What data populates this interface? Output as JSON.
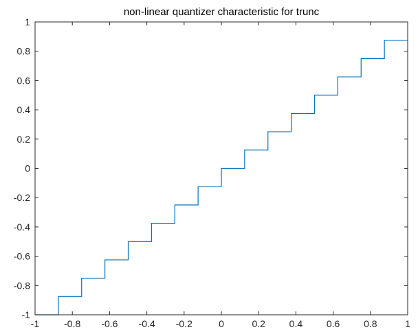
{
  "chart_data": {
    "type": "line",
    "title": "non-linear quantizer characteristic for trunc",
    "xlabel": "",
    "ylabel": "",
    "xlim": [
      -1,
      1
    ],
    "ylim": [
      -1,
      1
    ],
    "grid": false,
    "x_ticks": [
      "-1",
      "-0.8",
      "-0.6",
      "-0.4",
      "-0.2",
      "0",
      "0.2",
      "0.4",
      "0.6",
      "0.8",
      "1"
    ],
    "y_ticks": [
      "1",
      "0.8",
      "0.6",
      "0.4",
      "0.2",
      "0",
      "-0.2",
      "-0.4",
      "-0.6",
      "-0.8",
      "-1"
    ],
    "series": [
      {
        "color": "#0072bd",
        "step": "post",
        "x": [
          -1,
          -0.875,
          -0.75,
          -0.625,
          -0.5,
          -0.375,
          -0.25,
          -0.125,
          0,
          0.125,
          0.25,
          0.375,
          0.5,
          0.625,
          0.75,
          0.875,
          1
        ],
        "y": [
          -1,
          -0.875,
          -0.75,
          -0.625,
          -0.5,
          -0.375,
          -0.25,
          -0.125,
          0,
          0.125,
          0.25,
          0.375,
          0.5,
          0.625,
          0.75,
          0.875,
          0.875
        ]
      }
    ]
  }
}
